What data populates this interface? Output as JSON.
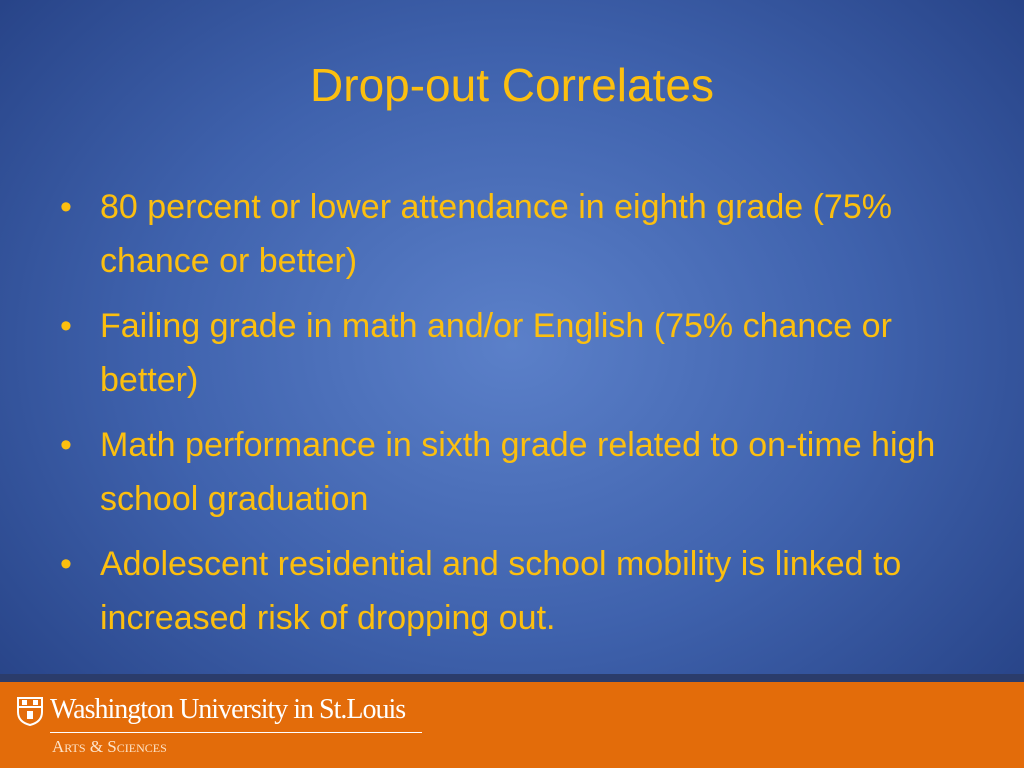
{
  "slide": {
    "title": "Drop-out Correlates",
    "bullets": [
      "80 percent or lower attendance in eighth grade (75% chance or better)",
      "Failing grade in math and/or English (75% chance or better)",
      "Math performance in sixth grade related to on-time high school graduation",
      "Adolescent residential and school mobility is linked to increased risk of dropping out."
    ]
  },
  "footer": {
    "university": "Washington University in St.Louis",
    "school": "Arts & Sciences"
  }
}
